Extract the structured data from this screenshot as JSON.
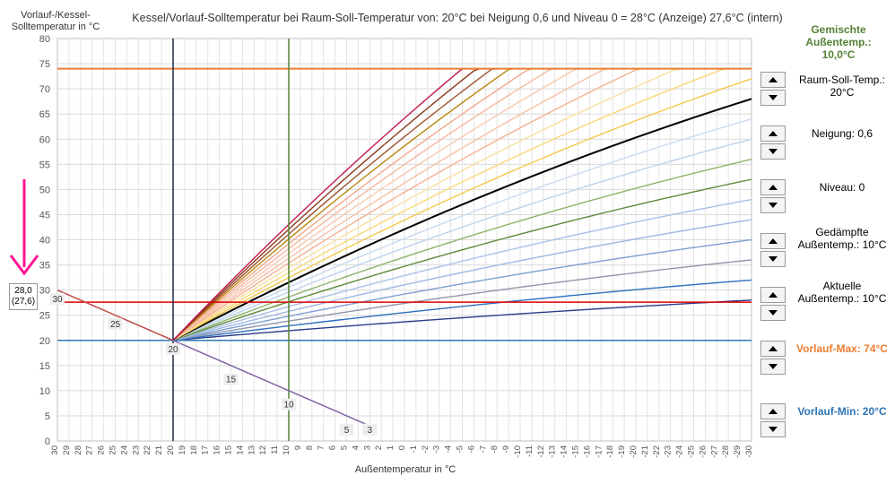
{
  "chart_data": {
    "type": "line",
    "title": "Kessel/Vorlauf-Solltemperatur bei Raum-Soll-Temperatur von: 20°C bei Neigung 0,6 und Niveau 0 = 28°C (Anzeige) 27,6°C (intern)",
    "ylabel": "Vorlauf-/Kessel-\nSolltemperatur in °C",
    "xlabel": "Außentemperatur in °C",
    "x_ticks": [
      30,
      29,
      28,
      27,
      26,
      25,
      24,
      23,
      22,
      21,
      20,
      19,
      18,
      17,
      16,
      15,
      14,
      13,
      12,
      11,
      10,
      9,
      8,
      7,
      6,
      5,
      4,
      3,
      2,
      1,
      0,
      -1,
      -2,
      -3,
      -4,
      -5,
      -6,
      -7,
      -8,
      -9,
      -10,
      -11,
      -12,
      -13,
      -14,
      -15,
      -16,
      -17,
      -18,
      -19,
      -20,
      -21,
      -22,
      -23,
      -24,
      -25,
      -26,
      -27,
      -28,
      -29,
      -30
    ],
    "xlim": [
      30,
      -30
    ],
    "ylim": [
      0,
      80
    ],
    "y_ticks": [
      0,
      5,
      10,
      15,
      20,
      25,
      30,
      35,
      40,
      45,
      50,
      55,
      60,
      65,
      70,
      75,
      80
    ],
    "vorlauf_max": 74,
    "vorlauf_min": 20,
    "room_temp": 20,
    "outside_temp_mark": 10,
    "setpoint_line": 27.6,
    "curve_slopes": [
      {
        "slope": 0.2,
        "color": "#2b3a8a"
      },
      {
        "slope": 0.3,
        "color": "#2e6fc0"
      },
      {
        "slope": 0.4,
        "color": "#8f98a8"
      },
      {
        "slope": 0.5,
        "color": "#7e9fd4"
      },
      {
        "slope": 0.6,
        "color": "#9db7e2"
      },
      {
        "slope": 0.7,
        "color": "#a9c1e8"
      },
      {
        "slope": 0.8,
        "color": "#5d8a3a"
      },
      {
        "slope": 0.9,
        "color": "#8fb36a"
      },
      {
        "slope": 1.0,
        "color": "#bcd3ee"
      },
      {
        "slope": 1.1,
        "color": "#c9daf1"
      },
      {
        "slope": 1.2,
        "color": "#000000"
      },
      {
        "slope": 1.3,
        "color": "#f4c84a"
      },
      {
        "slope": 1.4,
        "color": "#f8d878"
      },
      {
        "slope": 1.5,
        "color": "#f9dfa0"
      },
      {
        "slope": 1.6,
        "color": "#f5b090"
      },
      {
        "slope": 1.7,
        "color": "#f7c0a4"
      },
      {
        "slope": 1.8,
        "color": "#f8c9b0"
      },
      {
        "slope": 1.9,
        "color": "#f6b8a0"
      },
      {
        "slope": 2.0,
        "color": "#f2a88a"
      },
      {
        "slope": 2.1,
        "color": "#b8860b"
      },
      {
        "slope": 2.2,
        "color": "#a0522d"
      },
      {
        "slope": 2.3,
        "color": "#8b3a1a"
      },
      {
        "slope": 2.4,
        "color": "#c0184a"
      }
    ],
    "lower_lines": [
      {
        "name": "30-20",
        "from": [
          30,
          30
        ],
        "to": [
          20,
          20
        ],
        "color": "#c0504d",
        "labels": [
          {
            "text": "30",
            "x": 30,
            "y": 28
          },
          {
            "text": "25",
            "x": 25,
            "y": 23
          }
        ]
      },
      {
        "name": "20-3",
        "from": [
          20,
          20
        ],
        "to": [
          3,
          3
        ],
        "color": "#8064a2",
        "labels": [
          {
            "text": "20",
            "x": 20,
            "y": 18
          },
          {
            "text": "15",
            "x": 15,
            "y": 12
          },
          {
            "text": "10",
            "x": 10,
            "y": 7
          },
          {
            "text": "5",
            "x": 5,
            "y": 2
          },
          {
            "text": "3",
            "x": 3,
            "y": 2
          }
        ]
      }
    ],
    "callout": {
      "line1": "28,0",
      "line2": "(27,6)"
    }
  },
  "panel": {
    "mixed_label": "Gemischte Außentemp.: 10,0°C",
    "mixed_color": "#548235",
    "items": [
      {
        "label": "Raum-Soll-Temp.: 20°C",
        "color": "#000000"
      },
      {
        "label": "Neigung: 0,6",
        "color": "#000000"
      },
      {
        "label": "Niveau: 0",
        "color": "#000000"
      },
      {
        "label": "Gedämpfte Außentemp.: 10°C",
        "color": "#000000"
      },
      {
        "label": "Aktuelle Außentemp.: 10°C",
        "color": "#000000"
      },
      {
        "label": "Vorlauf-Max: 74°C",
        "color": "#ed7d31"
      },
      {
        "label": "Vorlauf-Min: 20°C",
        "color": "#2e75b6"
      }
    ]
  }
}
